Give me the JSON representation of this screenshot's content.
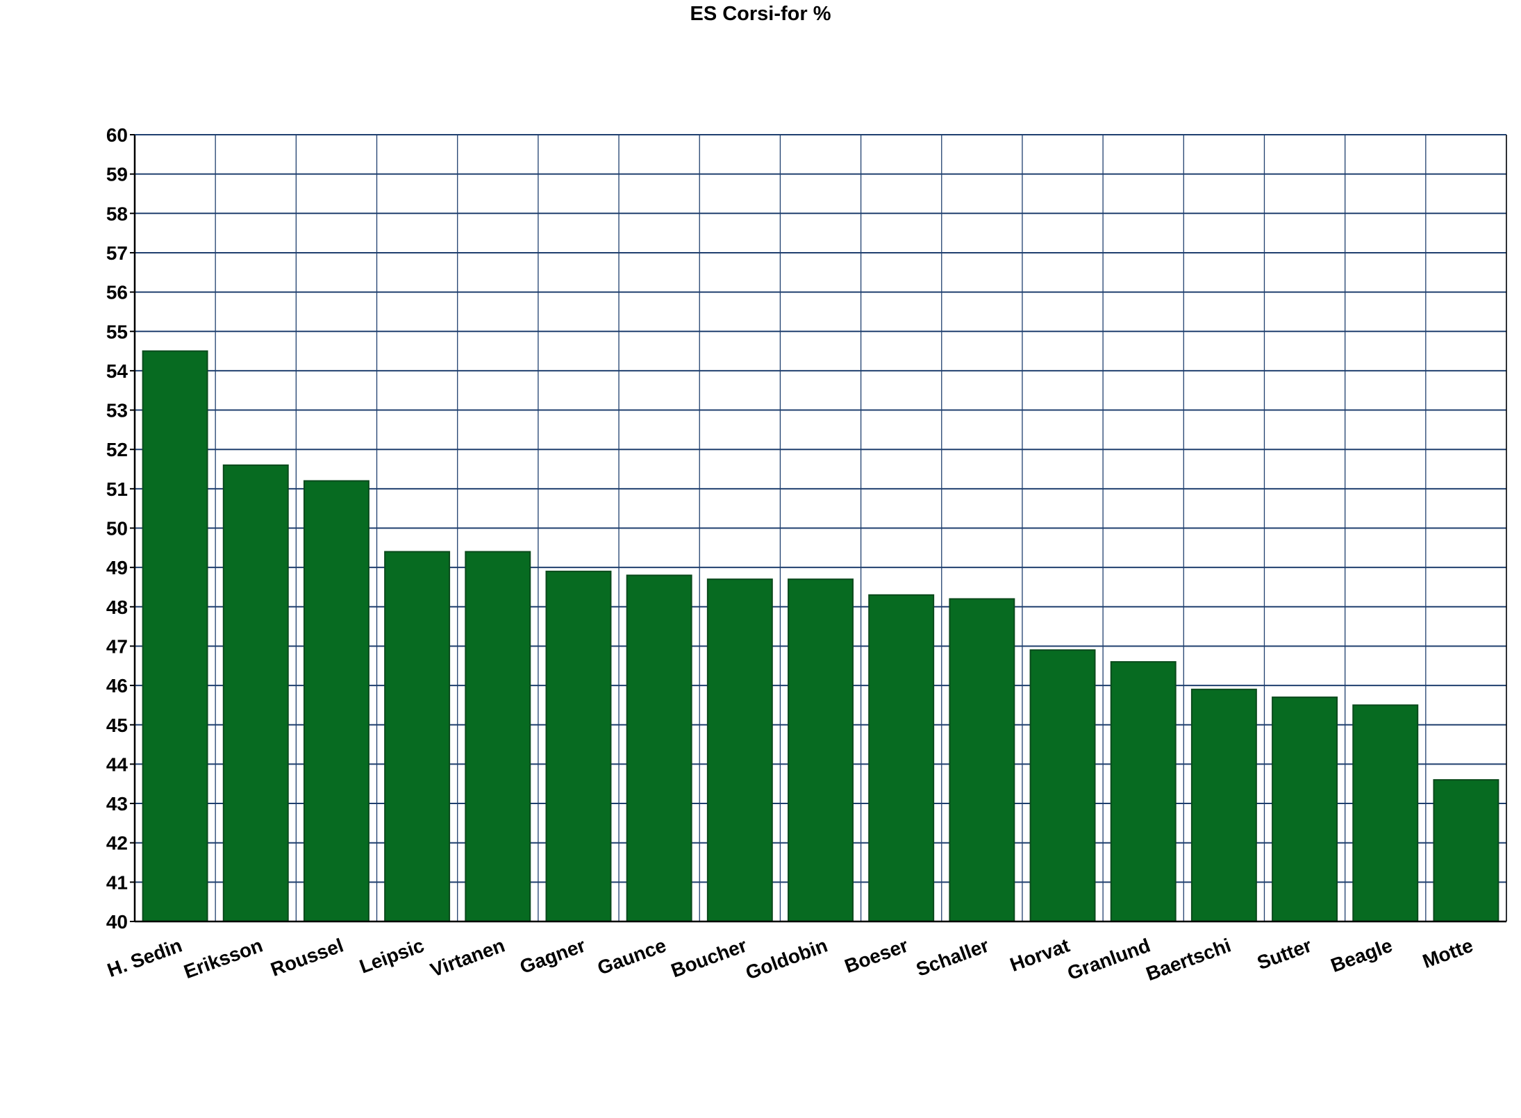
{
  "chart_data": {
    "type": "bar",
    "title": "ES Corsi-for %",
    "xlabel": "",
    "ylabel": "",
    "categories": [
      "H. Sedin",
      "Eriksson",
      "Roussel",
      "Leipsic",
      "Virtanen",
      "Gagner",
      "Gaunce",
      "Boucher",
      "Goldobin",
      "Boeser",
      "Schaller",
      "Horvat",
      "Granlund",
      "Baertschi",
      "Sutter",
      "Beagle",
      "Motte"
    ],
    "values": [
      54.5,
      51.6,
      51.2,
      49.4,
      49.4,
      48.9,
      48.8,
      48.7,
      48.7,
      48.3,
      48.2,
      46.9,
      46.6,
      45.9,
      45.7,
      45.5,
      43.6
    ],
    "ylim": [
      40,
      60
    ],
    "ytick_step": 1,
    "grid": true,
    "legend": "none",
    "colors": {
      "bar": "#076b21",
      "bar_border": "#0a4a1c",
      "grid": "#1f3f6e",
      "axis": "#000000"
    }
  }
}
